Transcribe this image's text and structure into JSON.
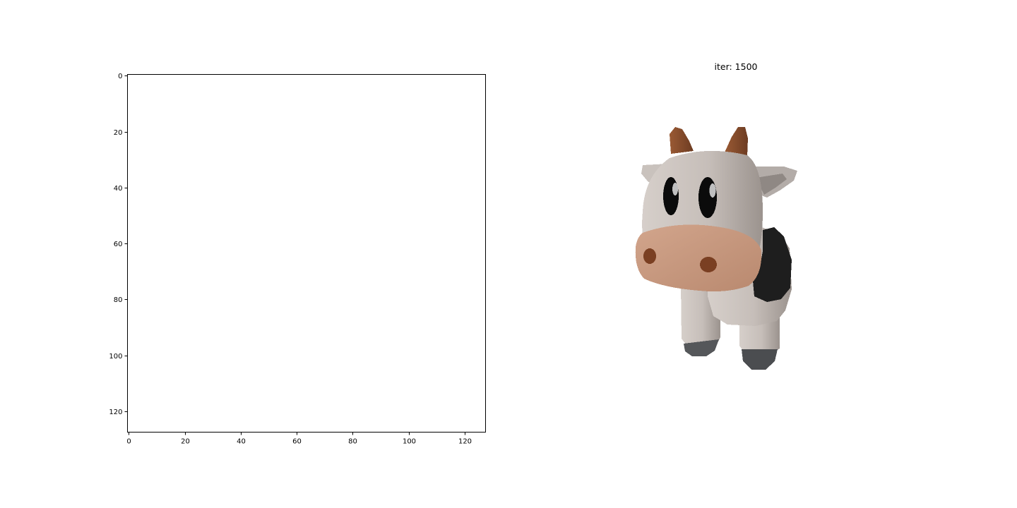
{
  "chart_data": [
    {
      "type": "image",
      "panel": "left",
      "title": "",
      "xlabel": "",
      "ylabel": "",
      "xlim": [
        -0.5,
        127.5
      ],
      "ylim": [
        127.5,
        -0.5
      ],
      "xticks": [
        0,
        20,
        40,
        60,
        80,
        100,
        120
      ],
      "yticks": [
        0,
        20,
        40,
        60,
        80,
        100,
        120
      ],
      "xtick_labels": [
        "0",
        "20",
        "40",
        "60",
        "80",
        "100",
        "120"
      ],
      "ytick_labels": [
        "0",
        "20",
        "40",
        "60",
        "80",
        "100",
        "120"
      ],
      "content": "blank"
    },
    {
      "type": "image",
      "panel": "right",
      "title": "iter: 1500",
      "axis": "off",
      "content": "cow-render"
    }
  ],
  "colors": {
    "axis": "#000000",
    "body": "#c8c0bb",
    "body_shade": "#a09893",
    "muzzle": "#c99a80",
    "nostril": "#7a3f22",
    "horn": "#8a5030",
    "spot": "#1e1e1e",
    "hoof": "#55575a"
  }
}
